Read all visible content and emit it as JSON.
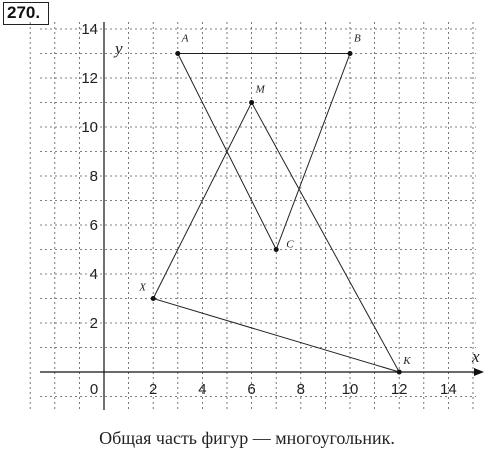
{
  "problem_number": "270.",
  "caption": "Общая часть фигур — многоугольник.",
  "axes": {
    "x_label": "x",
    "y_label": "y"
  },
  "x_ticks": [
    {
      "value": 0,
      "label": "0"
    },
    {
      "value": 2,
      "label": "2"
    },
    {
      "value": 4,
      "label": "4"
    },
    {
      "value": 6,
      "label": "6"
    },
    {
      "value": 8,
      "label": "8"
    },
    {
      "value": 10,
      "label": "10"
    },
    {
      "value": 12,
      "label": "12"
    },
    {
      "value": 14,
      "label": "14"
    }
  ],
  "y_ticks": [
    {
      "value": 2,
      "label": "2"
    },
    {
      "value": 4,
      "label": "4"
    },
    {
      "value": 6,
      "label": "6"
    },
    {
      "value": 8,
      "label": "8"
    },
    {
      "value": 10,
      "label": "10"
    },
    {
      "value": 12,
      "label": "12"
    },
    {
      "value": 14,
      "label": "14"
    }
  ],
  "points": [
    {
      "name": "A",
      "x": 3,
      "y": 13
    },
    {
      "name": "B",
      "x": 10,
      "y": 13
    },
    {
      "name": "C",
      "x": 7,
      "y": 5
    },
    {
      "name": "M",
      "x": 6,
      "y": 11
    },
    {
      "name": "X",
      "x": 2,
      "y": 3
    },
    {
      "name": "K",
      "x": 12,
      "y": 0
    }
  ],
  "figures": [
    {
      "name": "triangle-ABC",
      "vertices": [
        "A",
        "B",
        "C"
      ]
    },
    {
      "name": "triangle-MXK",
      "vertices": [
        "M",
        "X",
        "K"
      ]
    }
  ],
  "colors": {
    "ink": "#222222",
    "grid": "#555555"
  }
}
